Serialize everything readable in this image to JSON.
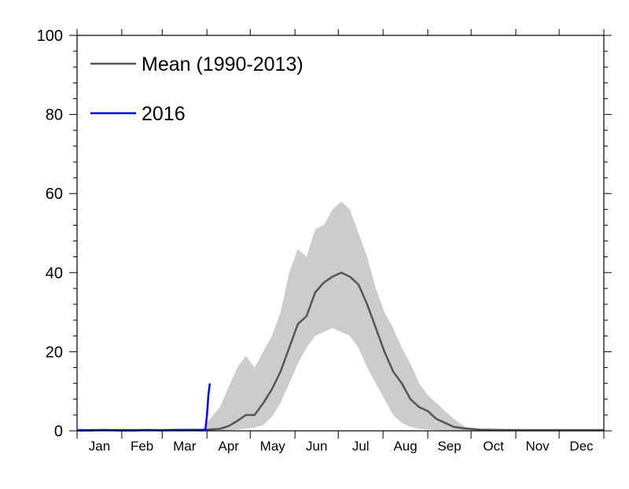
{
  "chart_data": {
    "type": "line",
    "title": "",
    "xlabel": "",
    "ylabel": "",
    "ylim": [
      0,
      100
    ],
    "yticks": [
      0,
      20,
      40,
      60,
      80,
      100
    ],
    "xlim": [
      1,
      366
    ],
    "months": [
      "Jan",
      "Feb",
      "Mar",
      "Apr",
      "May",
      "Jun",
      "Jul",
      "Aug",
      "Sep",
      "Oct",
      "Nov",
      "Dec"
    ],
    "legend_position": "top-left",
    "grid": false,
    "x_unit": "day of year",
    "series": [
      {
        "name": "Mean (1990-2013)",
        "color": "#555555",
        "x": [
          1,
          60,
          91,
          100,
          106,
          112,
          118,
          124,
          130,
          136,
          142,
          148,
          154,
          160,
          166,
          172,
          178,
          184,
          190,
          196,
          202,
          208,
          214,
          220,
          226,
          232,
          238,
          244,
          250,
          256,
          262,
          270,
          280,
          300,
          320,
          340,
          366
        ],
        "values": [
          0.2,
          0.2,
          0.3,
          0.5,
          1.2,
          2.5,
          4.0,
          4.0,
          7.0,
          10.5,
          15.0,
          21.0,
          27.0,
          29.0,
          35.0,
          37.5,
          39.0,
          40.0,
          39.0,
          37.0,
          32.0,
          26.0,
          20.0,
          15.0,
          12.0,
          8.0,
          6.0,
          5.0,
          3.0,
          2.0,
          1.0,
          0.6,
          0.3,
          0.2,
          0.2,
          0.2,
          0.2
        ]
      },
      {
        "name": "2016",
        "color": "#0000ff",
        "x": [
          1,
          10,
          20,
          30,
          40,
          50,
          60,
          70,
          80,
          88,
          89,
          90,
          91,
          92,
          93
        ],
        "values": [
          0.1,
          0.1,
          0.2,
          0.1,
          0.1,
          0.2,
          0.1,
          0.2,
          0.2,
          0.1,
          0.2,
          0.5,
          4.0,
          9.0,
          12.0
        ]
      }
    ],
    "range_band": {
      "color": "#cccccc",
      "x": [
        91,
        100,
        106,
        112,
        118,
        124,
        130,
        136,
        142,
        148,
        154,
        160,
        166,
        172,
        178,
        184,
        190,
        196,
        202,
        208,
        214,
        220,
        226,
        232,
        238,
        244,
        250,
        256,
        262,
        270,
        280,
        290,
        300
      ],
      "lower": [
        0,
        0,
        0,
        0.3,
        0.6,
        0.8,
        1.5,
        3.5,
        7.0,
        12.0,
        17.0,
        21.0,
        24.0,
        25.0,
        26.0,
        25.0,
        24.0,
        21.0,
        16.0,
        12.0,
        8.0,
        4.0,
        2.0,
        1.0,
        0.5,
        0.3,
        0.2,
        0.1,
        0,
        0,
        0,
        0,
        0
      ],
      "upper": [
        2.0,
        6.0,
        11.0,
        16.0,
        19.0,
        16.0,
        20.0,
        24.0,
        30.0,
        40.0,
        46.0,
        44.0,
        51.0,
        52.0,
        56.0,
        58.0,
        56.0,
        50.0,
        44.0,
        36.0,
        30.0,
        26.0,
        21.0,
        17.0,
        12.0,
        9.0,
        7.0,
        5.0,
        3.0,
        1.0,
        0.5,
        0.2,
        0
      ]
    }
  }
}
